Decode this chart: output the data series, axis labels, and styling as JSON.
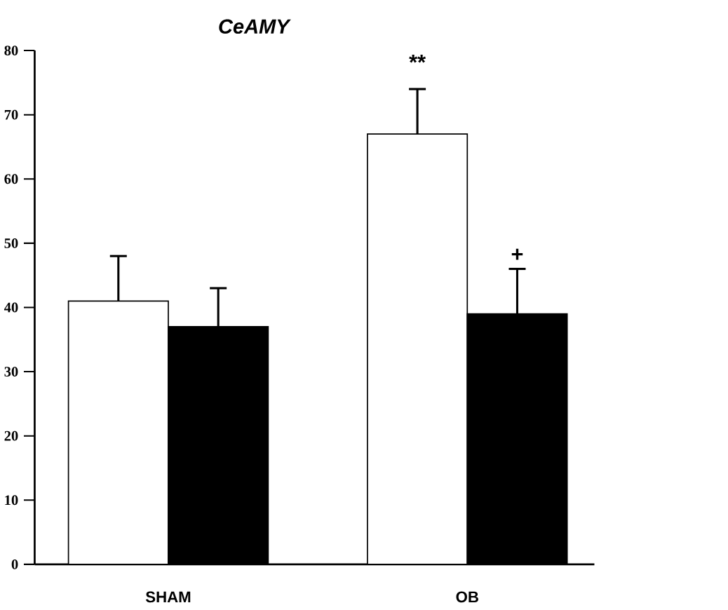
{
  "chart_data": {
    "type": "bar",
    "title": "CeAMY",
    "categories": [
      "SHAM",
      "OB"
    ],
    "series": [
      {
        "color": "#ffffff",
        "values": [
          41,
          67
        ],
        "errors": [
          [
            41,
            48
          ],
          [
            67,
            74
          ]
        ]
      },
      {
        "color": "#000000",
        "values": [
          37,
          39
        ],
        "errors": [
          [
            37,
            43
          ],
          [
            39,
            46
          ]
        ]
      }
    ],
    "ylim": [
      0,
      80
    ],
    "yticks": [
      0,
      10,
      20,
      30,
      40,
      50,
      60,
      70,
      80
    ],
    "annotations": [
      "**",
      {
        "text": "+",
        "x": "OB",
        "y": 46
      }
    ]
  }
}
